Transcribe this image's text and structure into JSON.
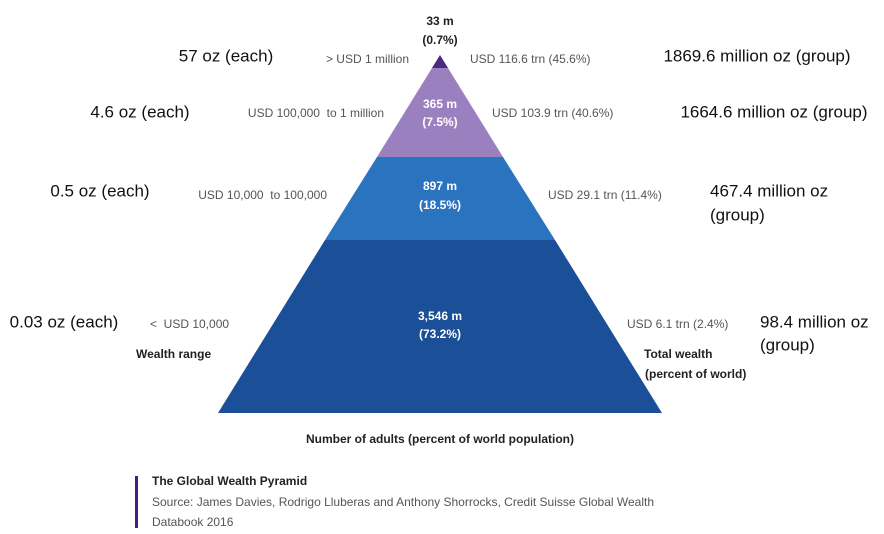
{
  "tiers": [
    {
      "adults": "33 m",
      "adults_pct": "(0.7%)",
      "range": "> USD 1 million",
      "wealth": "USD 116.6 trn (45.6%)",
      "gold_each": "57 oz (each)",
      "gold_group": [
        "1869.6 million oz (group)"
      ]
    },
    {
      "adults": "365 m",
      "adults_pct": "(7.5%)",
      "range": "USD 100,000  to 1 million",
      "wealth": "USD 103.9 trn (40.6%)",
      "gold_each": "4.6 oz (each)",
      "gold_group": [
        "1664.6 million oz (group)"
      ]
    },
    {
      "adults": "897 m",
      "adults_pct": "(18.5%)",
      "range": "USD 10,000  to 100,000",
      "wealth": "USD 29.1 trn (11.4%)",
      "gold_each": "0.5 oz (each)",
      "gold_group": [
        "467.4 million oz",
        "(group)"
      ]
    },
    {
      "adults": "3,546 m",
      "adults_pct": "(73.2%)",
      "range": "<  USD 10,000",
      "wealth": "USD 6.1 trn (2.4%)",
      "gold_each": "0.03 oz (each)",
      "gold_group": [
        "98.4 million oz",
        "(group)"
      ]
    }
  ],
  "labels": {
    "wealth_range": "Wealth range",
    "total_wealth": [
      "Total wealth",
      "(percent of world)"
    ],
    "adults_axis": "Number of adults (percent of world population)"
  },
  "footer": {
    "title": "The Global Wealth Pyramid",
    "source": [
      "Source: James Davies, Rodrigo Lluberas and Anthony Shorrocks, Credit Suisse Global Wealth",
      "Databook 2016"
    ]
  }
}
